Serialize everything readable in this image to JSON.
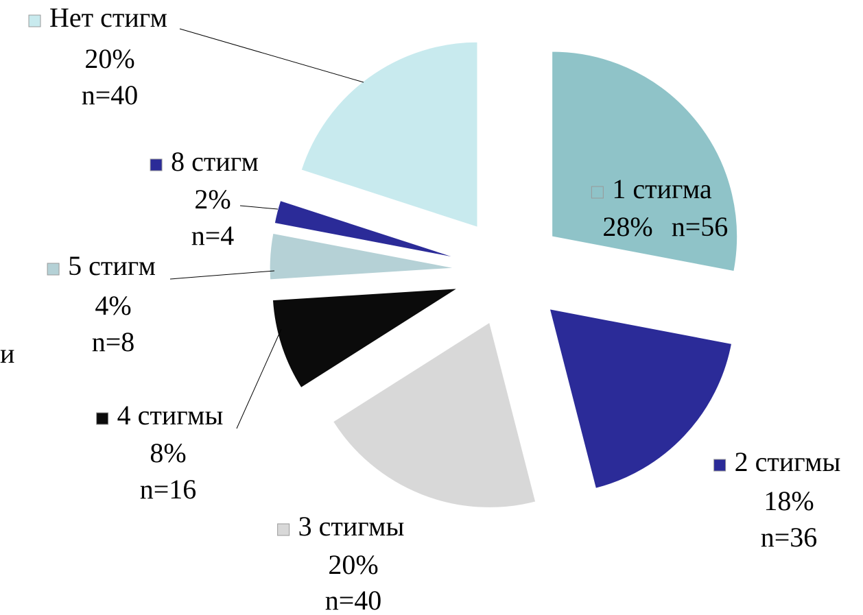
{
  "chart_data": {
    "type": "pie",
    "categories": [
      "1 стигма",
      "2 стигмы",
      "3 стигмы",
      "4 стигмы",
      "5 стигм",
      "8 стигм",
      "Нет стигм"
    ],
    "values": [
      28,
      18,
      20,
      8,
      4,
      2,
      20
    ],
    "value_labels": [
      "28%",
      "18%",
      "20%",
      "8%",
      "4%",
      "2%",
      "20%"
    ],
    "n_labels": [
      "n=56",
      "n=36",
      "n=40",
      "n=16",
      "n=8",
      "n=4",
      "n=40"
    ],
    "colors": [
      "#8fc3c8",
      "#2b2b98",
      "#d8d8d8",
      "#0b0b0b",
      "#b5d1d6",
      "#2b2b98",
      "#c8eaee"
    ],
    "annotations": [
      "и"
    ]
  }
}
